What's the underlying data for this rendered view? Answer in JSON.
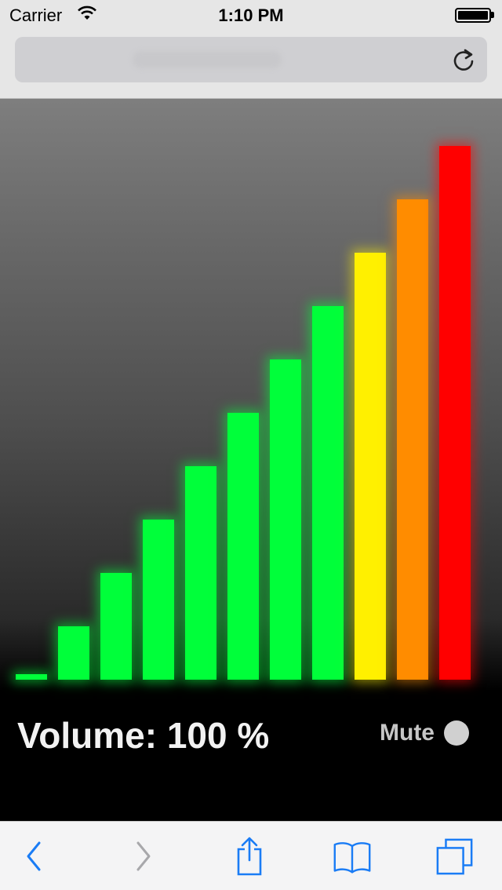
{
  "status_bar": {
    "carrier": "Carrier",
    "time": "1:10 PM",
    "wifi_icon": "wifi-icon",
    "battery_icon": "battery-icon"
  },
  "address_bar": {
    "reload_icon": "reload-icon"
  },
  "visualizer": {
    "volume_label": "Volume: 100 %",
    "mute_label": "Mute",
    "mute_enabled": false,
    "level_max": 10,
    "bar_levels": [
      0.1,
      1,
      2,
      3,
      4,
      5,
      6,
      7,
      8,
      9,
      10
    ],
    "bar_colors": [
      "#00ff3a",
      "#00ff3a",
      "#00ff3a",
      "#00ff3a",
      "#00ff3a",
      "#00ff3a",
      "#00ff3a",
      "#00ff3a",
      "#fff000",
      "#ff8c00",
      "#ff0000"
    ]
  },
  "toolbar": {
    "back_icon": "back-chevron-icon",
    "forward_icon": "forward-chevron-icon",
    "share_icon": "share-icon",
    "bookmarks_icon": "bookmarks-icon",
    "tabs_icon": "tabs-icon",
    "accent_color": "#1a7cf5",
    "disabled_color": "#a8a8ab"
  }
}
